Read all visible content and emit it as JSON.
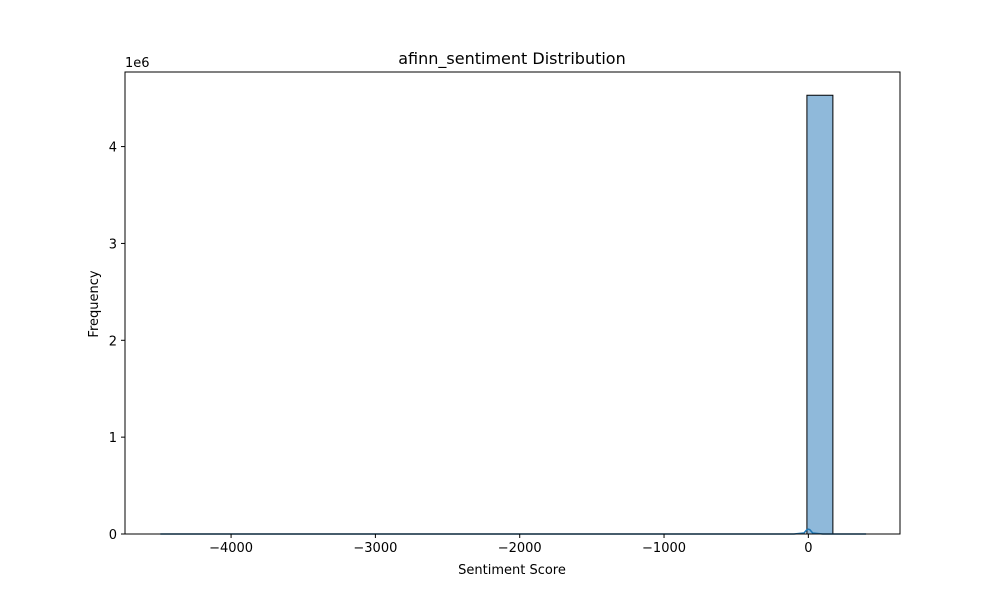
{
  "chart_data": {
    "type": "bar",
    "title": "afinn_sentiment Distribution",
    "xlabel": "Sentiment Score",
    "ylabel": "Frequency",
    "y_scale_label": "1e6",
    "x_ticks": [
      {
        "value": -4000,
        "label": "−4000"
      },
      {
        "value": -3000,
        "label": "−3000"
      },
      {
        "value": -2000,
        "label": "−2000"
      },
      {
        "value": -1000,
        "label": "−1000"
      },
      {
        "value": 0,
        "label": "0"
      }
    ],
    "y_ticks": [
      {
        "value": 0,
        "label": "0"
      },
      {
        "value": 1,
        "label": "1"
      },
      {
        "value": 2,
        "label": "2"
      },
      {
        "value": 3,
        "label": "3"
      },
      {
        "value": 4,
        "label": "4"
      }
    ],
    "xlim": [
      -4735,
      635
    ],
    "ylim": [
      0,
      4.77
    ],
    "bins": [
      {
        "x0": -10,
        "x1": 170,
        "value": 4.53
      }
    ],
    "kde": {
      "x": [
        -4490,
        -1000,
        -100,
        -30,
        -10,
        0,
        10,
        30,
        100,
        400
      ],
      "y": [
        0.0,
        0.0,
        0.0,
        0.01,
        0.045,
        0.05,
        0.045,
        0.01,
        0.0,
        0.0
      ]
    },
    "grid": false,
    "legend": "none",
    "colors": {
      "bar_fill": "#8fb9da",
      "bar_edge": "#000000",
      "kde_line": "#1f77b4",
      "axis": "#000000"
    }
  }
}
